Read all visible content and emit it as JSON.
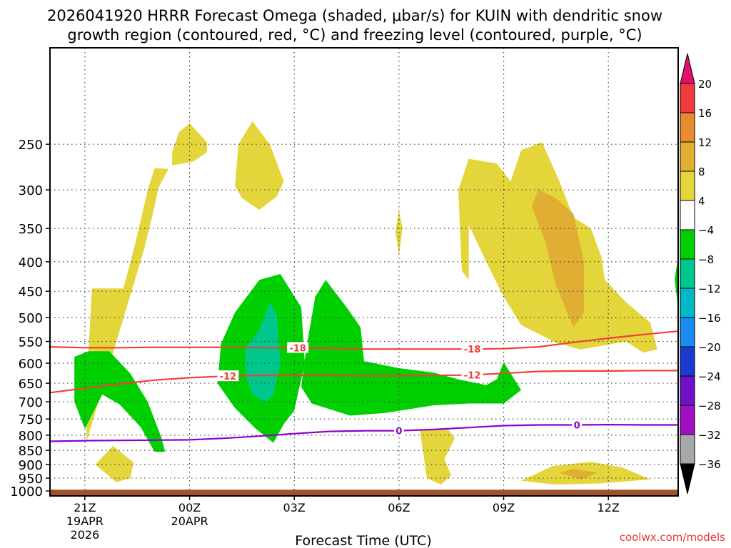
{
  "chart_data": {
    "type": "heatmap",
    "title_line1": "2026041920 HRRR Forecast Omega (shaded, μbar/s) for KUIN with dendritic snow",
    "title_line2": "growth region (contoured, red, °C) and freezing level (contoured, purple, °C)",
    "xlabel": "Forecast Time (UTC)",
    "ylabel": "",
    "credit": "coolwx.com/models",
    "x_range_hours": [
      -1.0,
      17.0
    ],
    "pressure_range": [
      1020,
      170
    ],
    "x_ticks": [
      {
        "hour": 0,
        "label": "21Z",
        "sub1": "19APR",
        "sub2": "2026"
      },
      {
        "hour": 3,
        "label": "00Z",
        "sub1": "20APR",
        "sub2": ""
      },
      {
        "hour": 6,
        "label": "03Z",
        "sub1": "",
        "sub2": ""
      },
      {
        "hour": 9,
        "label": "06Z",
        "sub1": "",
        "sub2": ""
      },
      {
        "hour": 12,
        "label": "09Z",
        "sub1": "",
        "sub2": ""
      },
      {
        "hour": 15,
        "label": "12Z",
        "sub1": "",
        "sub2": ""
      }
    ],
    "y_ticks": [
      250,
      300,
      350,
      400,
      450,
      500,
      550,
      600,
      650,
      700,
      750,
      800,
      850,
      900,
      950,
      1000
    ],
    "colorbar": {
      "labels": [
        "20",
        "16",
        "12",
        "8",
        "4",
        "−4",
        "−8",
        "−12",
        "−16",
        "−20",
        "−24",
        "−28",
        "−32",
        "−36"
      ],
      "colors": [
        "#e0106e",
        "#ee3a3a",
        "#e88a2e",
        "#e0ae32",
        "#e4d63a",
        "#ffffff",
        "#00d000",
        "#00c88c",
        "#00b8c8",
        "#1a8cf0",
        "#1a3ad0",
        "#7010c8",
        "#a010c0",
        "#a8a8a8",
        "#000000"
      ]
    },
    "series": [
      {
        "name": "dendritic snow growth -18 °C",
        "color": "#f04038",
        "label": "-18",
        "x": [
          -1.0,
          0,
          1,
          2,
          3,
          4,
          5,
          6,
          7,
          8,
          9,
          10,
          11,
          12,
          13,
          14,
          15,
          16,
          17
        ],
        "p": [
          562,
          564,
          564,
          563,
          563,
          563,
          564,
          564,
          565,
          567,
          567,
          567,
          567,
          566,
          562,
          552,
          543,
          535,
          528
        ],
        "label_hours": [
          6.1,
          11.1
        ]
      },
      {
        "name": "dendritic snow growth -12 °C",
        "color": "#f04038",
        "label": "-12",
        "x": [
          -1.0,
          0,
          1,
          2,
          3,
          4,
          5,
          6,
          7,
          8,
          9,
          10,
          11,
          12,
          13,
          14,
          15,
          16,
          17
        ],
        "p": [
          675,
          663,
          652,
          642,
          636,
          632,
          630,
          630,
          630,
          631,
          631,
          630,
          629,
          625,
          620,
          619,
          619,
          618,
          618
        ],
        "label_hours": [
          4.1,
          11.1
        ]
      },
      {
        "name": "freezing level 0 °C",
        "color": "#8a00d0",
        "label": "0",
        "x": [
          -1.0,
          0,
          1,
          2,
          3,
          4,
          5,
          6,
          7,
          8,
          9,
          10,
          11,
          12,
          13,
          14,
          15,
          16,
          17
        ],
        "p": [
          820,
          818,
          817,
          816,
          815,
          810,
          803,
          795,
          788,
          786,
          786,
          782,
          776,
          770,
          768,
          768,
          767,
          768,
          768
        ],
        "label_hours": [
          9.0,
          14.1
        ]
      }
    ],
    "omega_regions": [
      {
        "name": "ascent 4-8 upper-left band",
        "value": "4 to 8",
        "color": "#e4d63a",
        "points": [
          [
            0.05,
            820
          ],
          [
            0.03,
            700
          ],
          [
            0.1,
            580
          ],
          [
            0.2,
            445
          ],
          [
            1.1,
            445
          ],
          [
            1.3,
            402
          ],
          [
            1.5,
            360
          ],
          [
            1.8,
            300
          ],
          [
            2.0,
            275
          ],
          [
            2.4,
            276
          ],
          [
            2.1,
            298
          ],
          [
            2.0,
            320
          ],
          [
            1.7,
            380
          ]
        ]
      },
      {
        "name": "ascent 4-8 upper 00Z",
        "value": "4 to 8",
        "color": "#e4d63a",
        "points": [
          [
            2.5,
            272
          ],
          [
            3.1,
            268
          ],
          [
            3.5,
            258
          ],
          [
            3.5,
            248
          ],
          [
            3.0,
            230
          ],
          [
            2.7,
            238
          ],
          [
            2.5,
            258
          ]
        ]
      },
      {
        "name": "ascent 4-8 upper 02Z",
        "value": "4 to 8",
        "color": "#e4d63a",
        "points": [
          [
            4.3,
            295
          ],
          [
            4.5,
            310
          ],
          [
            5.0,
            325
          ],
          [
            5.5,
            308
          ],
          [
            5.7,
            290
          ],
          [
            5.3,
            250
          ],
          [
            4.8,
            228
          ],
          [
            4.4,
            250
          ]
        ]
      },
      {
        "name": "ascent 4-8 sliver 06Z",
        "value": "4 to 8",
        "color": "#e4d63a",
        "points": [
          [
            8.9,
            355
          ],
          [
            9.0,
            390
          ],
          [
            9.1,
            350
          ],
          [
            9.0,
            325
          ]
        ]
      },
      {
        "name": "ascent 4-8 large right",
        "value": "4 to 8",
        "color": "#e4d63a",
        "points": [
          [
            10.8,
            415
          ],
          [
            10.7,
            300
          ],
          [
            11.0,
            265
          ],
          [
            11.8,
            270
          ],
          [
            12.2,
            290
          ],
          [
            12.5,
            256
          ],
          [
            13.1,
            248
          ],
          [
            13.6,
            290
          ],
          [
            14.0,
            335
          ],
          [
            14.5,
            350
          ],
          [
            14.8,
            392
          ],
          [
            14.9,
            430
          ],
          [
            15.5,
            470
          ],
          [
            16.2,
            510
          ],
          [
            16.4,
            568
          ],
          [
            16.0,
            575
          ],
          [
            15.5,
            550
          ],
          [
            14.8,
            560
          ],
          [
            14.2,
            568
          ],
          [
            13.5,
            553
          ],
          [
            12.5,
            515
          ],
          [
            12.0,
            460
          ],
          [
            11.5,
            400
          ],
          [
            11.0,
            345
          ],
          [
            11.0,
            430
          ]
        ]
      },
      {
        "name": "ascent 8-12 core",
        "value": "8 to 12",
        "color": "#e0ae32",
        "points": [
          [
            12.8,
            320
          ],
          [
            13.2,
            370
          ],
          [
            13.5,
            440
          ],
          [
            14.0,
            520
          ],
          [
            14.3,
            490
          ],
          [
            14.3,
            400
          ],
          [
            14.0,
            330
          ],
          [
            13.5,
            310
          ],
          [
            13.0,
            300
          ]
        ]
      },
      {
        "name": "ascent 4-8 low 22Z",
        "value": "4 to 8",
        "color": "#e4d63a",
        "points": [
          [
            0.3,
            900
          ],
          [
            0.8,
            835
          ],
          [
            1.4,
            892
          ],
          [
            1.3,
            950
          ],
          [
            0.9,
            965
          ]
        ]
      },
      {
        "name": "ascent 4-8 low 07Z",
        "value": "4 to 8",
        "color": "#e4d63a",
        "points": [
          [
            9.6,
            785
          ],
          [
            9.8,
            950
          ],
          [
            10.2,
            975
          ],
          [
            10.5,
            940
          ],
          [
            10.3,
            880
          ],
          [
            10.6,
            810
          ],
          [
            10.4,
            780
          ]
        ]
      },
      {
        "name": "ascent 4-8 low 11Z",
        "value": "4 to 8",
        "color": "#e4d63a",
        "points": [
          [
            12.5,
            960
          ],
          [
            13.4,
            905
          ],
          [
            14.5,
            890
          ],
          [
            15.4,
            910
          ],
          [
            16.2,
            955
          ],
          [
            14.8,
            970
          ],
          [
            13.5,
            975
          ]
        ]
      },
      {
        "name": "ascent 8-12 low 11Z",
        "value": "8 to 12",
        "color": "#e0ae32",
        "points": [
          [
            13.6,
            930
          ],
          [
            14.0,
            915
          ],
          [
            14.7,
            930
          ],
          [
            14.2,
            955
          ]
        ]
      },
      {
        "name": "descent -4 to -8 left",
        "value": "-4 to -8",
        "color": "#00d000",
        "points": [
          [
            -0.3,
            585
          ],
          [
            0.1,
            572
          ],
          [
            0.7,
            572
          ],
          [
            1.3,
            625
          ],
          [
            1.8,
            700
          ],
          [
            2.2,
            810
          ],
          [
            2.3,
            855
          ],
          [
            2.0,
            855
          ],
          [
            1.6,
            775
          ],
          [
            1.0,
            708
          ],
          [
            0.5,
            680
          ],
          [
            0.0,
            780
          ],
          [
            -0.3,
            700
          ]
        ]
      },
      {
        "name": "descent -4 to -8 mid",
        "value": "-4 to -8",
        "color": "#00d000",
        "points": [
          [
            3.8,
            650
          ],
          [
            3.9,
            555
          ],
          [
            4.3,
            490
          ],
          [
            5.0,
            430
          ],
          [
            5.6,
            420
          ],
          [
            6.2,
            480
          ],
          [
            6.3,
            600
          ],
          [
            6.0,
            725
          ],
          [
            5.7,
            765
          ],
          [
            5.4,
            825
          ],
          [
            4.9,
            780
          ],
          [
            4.3,
            718
          ]
        ]
      },
      {
        "name": "descent -8 to -12 core",
        "value": "-8 to -12",
        "color": "#00c88c",
        "points": [
          [
            4.6,
            565
          ],
          [
            5.0,
            525
          ],
          [
            5.3,
            470
          ],
          [
            5.5,
            495
          ],
          [
            5.6,
            600
          ],
          [
            5.4,
            680
          ],
          [
            5.2,
            702
          ],
          [
            4.8,
            680
          ],
          [
            4.6,
            630
          ]
        ]
      },
      {
        "name": "descent -4 to -8 right",
        "value": "-4 to -8",
        "color": "#00d000",
        "points": [
          [
            6.3,
            590
          ],
          [
            6.4,
            540
          ],
          [
            6.6,
            460
          ],
          [
            6.9,
            430
          ],
          [
            7.5,
            480
          ],
          [
            7.9,
            520
          ],
          [
            8.0,
            595
          ],
          [
            9.0,
            612
          ],
          [
            10.0,
            623
          ],
          [
            10.7,
            640
          ],
          [
            11.5,
            655
          ],
          [
            11.8,
            640
          ],
          [
            12.0,
            598
          ],
          [
            12.5,
            668
          ],
          [
            12.0,
            705
          ],
          [
            11.0,
            705
          ],
          [
            10.0,
            710
          ],
          [
            8.6,
            732
          ],
          [
            7.6,
            740
          ],
          [
            6.5,
            705
          ],
          [
            6.2,
            660
          ]
        ]
      },
      {
        "name": "descent -4 to -8 right edge",
        "value": "-4 to -8",
        "color": "#00d000",
        "points": [
          [
            17.0,
            390
          ],
          [
            16.9,
            430
          ],
          [
            17.0,
            480
          ]
        ]
      }
    ],
    "ground": {
      "name": "terrain",
      "color": "#a0522d",
      "pressure_top": 995
    }
  }
}
